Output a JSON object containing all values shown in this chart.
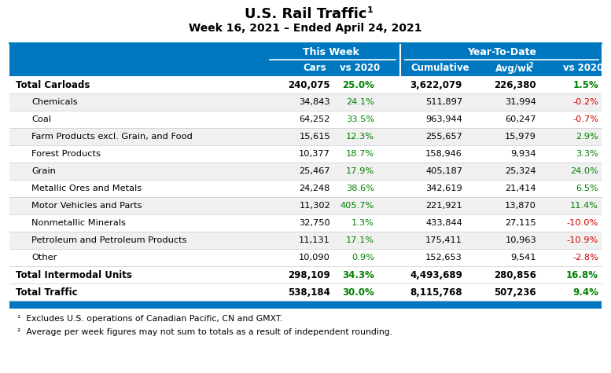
{
  "title": "U.S. Rail Traffic",
  "title_sup": "1",
  "subtitle": "Week 16, 2021 – Ended April 24, 2021",
  "header_group1": "This Week",
  "header_group2": "Year-To-Date",
  "rows": [
    {
      "label": "Total Carloads",
      "bold": true,
      "indent": false,
      "cars": "240,075",
      "vs2020_tw": "25.0%",
      "vs2020_tw_color": "green",
      "cumulative": "3,622,079",
      "avgwk": "226,380",
      "vs2020_ytd": "1.5%",
      "vs2020_ytd_color": "green"
    },
    {
      "label": "Chemicals",
      "bold": false,
      "indent": true,
      "cars": "34,843",
      "vs2020_tw": "24.1%",
      "vs2020_tw_color": "green",
      "cumulative": "511,897",
      "avgwk": "31,994",
      "vs2020_ytd": "-0.2%",
      "vs2020_ytd_color": "red"
    },
    {
      "label": "Coal",
      "bold": false,
      "indent": true,
      "cars": "64,252",
      "vs2020_tw": "33.5%",
      "vs2020_tw_color": "green",
      "cumulative": "963,944",
      "avgwk": "60,247",
      "vs2020_ytd": "-0.7%",
      "vs2020_ytd_color": "red"
    },
    {
      "label": "Farm Products excl. Grain, and Food",
      "bold": false,
      "indent": true,
      "cars": "15,615",
      "vs2020_tw": "12.3%",
      "vs2020_tw_color": "green",
      "cumulative": "255,657",
      "avgwk": "15,979",
      "vs2020_ytd": "2.9%",
      "vs2020_ytd_color": "green"
    },
    {
      "label": "Forest Products",
      "bold": false,
      "indent": true,
      "cars": "10,377",
      "vs2020_tw": "18.7%",
      "vs2020_tw_color": "green",
      "cumulative": "158,946",
      "avgwk": "9,934",
      "vs2020_ytd": "3.3%",
      "vs2020_ytd_color": "green"
    },
    {
      "label": "Grain",
      "bold": false,
      "indent": true,
      "cars": "25,467",
      "vs2020_tw": "17.9%",
      "vs2020_tw_color": "green",
      "cumulative": "405,187",
      "avgwk": "25,324",
      "vs2020_ytd": "24.0%",
      "vs2020_ytd_color": "green"
    },
    {
      "label": "Metallic Ores and Metals",
      "bold": false,
      "indent": true,
      "cars": "24,248",
      "vs2020_tw": "38.6%",
      "vs2020_tw_color": "green",
      "cumulative": "342,619",
      "avgwk": "21,414",
      "vs2020_ytd": "6.5%",
      "vs2020_ytd_color": "green"
    },
    {
      "label": "Motor Vehicles and Parts",
      "bold": false,
      "indent": true,
      "cars": "11,302",
      "vs2020_tw": "405.7%",
      "vs2020_tw_color": "green",
      "cumulative": "221,921",
      "avgwk": "13,870",
      "vs2020_ytd": "11.4%",
      "vs2020_ytd_color": "green"
    },
    {
      "label": "Nonmetallic Minerals",
      "bold": false,
      "indent": true,
      "cars": "32,750",
      "vs2020_tw": "1.3%",
      "vs2020_tw_color": "green",
      "cumulative": "433,844",
      "avgwk": "27,115",
      "vs2020_ytd": "-10.0%",
      "vs2020_ytd_color": "red"
    },
    {
      "label": "Petroleum and Petroleum Products",
      "bold": false,
      "indent": true,
      "cars": "11,131",
      "vs2020_tw": "17.1%",
      "vs2020_tw_color": "green",
      "cumulative": "175,411",
      "avgwk": "10,963",
      "vs2020_ytd": "-10.9%",
      "vs2020_ytd_color": "red"
    },
    {
      "label": "Other",
      "bold": false,
      "indent": true,
      "cars": "10,090",
      "vs2020_tw": "0.9%",
      "vs2020_tw_color": "green",
      "cumulative": "152,653",
      "avgwk": "9,541",
      "vs2020_ytd": "-2.8%",
      "vs2020_ytd_color": "red"
    },
    {
      "label": "Total Intermodal Units",
      "bold": true,
      "indent": false,
      "cars": "298,109",
      "vs2020_tw": "34.3%",
      "vs2020_tw_color": "green",
      "cumulative": "4,493,689",
      "avgwk": "280,856",
      "vs2020_ytd": "16.8%",
      "vs2020_ytd_color": "green"
    },
    {
      "label": "Total Traffic",
      "bold": true,
      "indent": false,
      "cars": "538,184",
      "vs2020_tw": "30.0%",
      "vs2020_tw_color": "green",
      "cumulative": "8,115,768",
      "avgwk": "507,236",
      "vs2020_ytd": "9.4%",
      "vs2020_ytd_color": "green"
    }
  ],
  "footnotes": [
    "¹  Excludes U.S. operations of Canadian Pacific, CN and GMXT.",
    "²  Average per week figures may not sum to totals as a result of independent rounding."
  ],
  "header_bg": "#0078BF",
  "header_text": "#FFFFFF",
  "green_color": "#008000",
  "red_color": "#CC0000",
  "row_alt_bg": "#F0F0F0",
  "row_white_bg": "#FFFFFF",
  "bottom_bar_color": "#0078BF",
  "divider_color": "#CCCCCC"
}
